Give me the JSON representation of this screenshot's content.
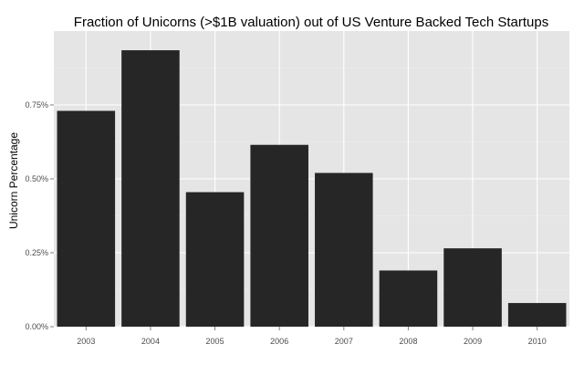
{
  "chart_data": {
    "type": "bar",
    "title": "Fraction of Unicorns (>$1B valuation) out of US Venture Backed Tech Startups",
    "xlabel": "",
    "ylabel": "Unicorn Percentage",
    "categories": [
      "2003",
      "2004",
      "2005",
      "2006",
      "2007",
      "2008",
      "2009",
      "2010"
    ],
    "values": [
      0.73,
      0.935,
      0.455,
      0.615,
      0.52,
      0.19,
      0.265,
      0.08
    ],
    "ylim": [
      0,
      1.0
    ],
    "y_ticks": [
      0,
      0.25,
      0.5,
      0.75
    ],
    "y_tick_labels": [
      "0.00%",
      "0.25%",
      "0.50%",
      "0.75%"
    ],
    "grid": true,
    "legend": "none",
    "colors": {
      "panel_bg": "#e5e5e5",
      "grid_major": "#ffffff",
      "grid_minor": "#f0f0f0",
      "bar": "#262626"
    }
  }
}
